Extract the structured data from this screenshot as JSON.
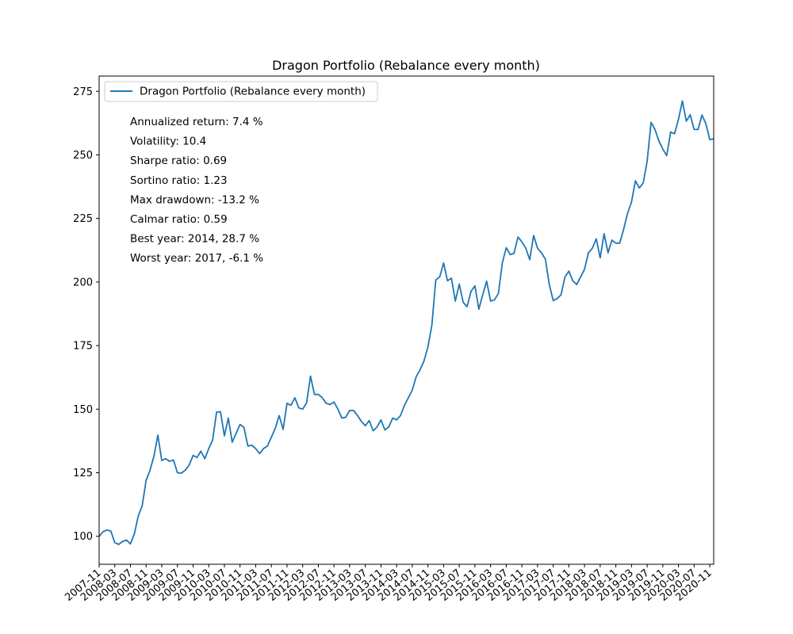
{
  "chart_data": {
    "type": "line",
    "title": "Dragon Portfolio (Rebalance every month)",
    "xlabel": "",
    "ylabel": "",
    "ylim": [
      89,
      281
    ],
    "y_ticks": [
      100,
      125,
      150,
      175,
      200,
      225,
      250,
      275
    ],
    "x_start": "2007-11",
    "x_ticks": [
      "2007-11",
      "2008-03",
      "2008-07",
      "2008-11",
      "2009-03",
      "2009-07",
      "2009-11",
      "2010-03",
      "2010-07",
      "2010-11",
      "2011-03",
      "2011-07",
      "2011-11",
      "2012-03",
      "2012-07",
      "2012-11",
      "2013-03",
      "2013-07",
      "2013-11",
      "2014-03",
      "2014-07",
      "2014-11",
      "2015-03",
      "2015-07",
      "2015-11",
      "2016-03",
      "2016-07",
      "2016-11",
      "2017-03",
      "2017-07",
      "2017-11",
      "2018-03",
      "2018-07",
      "2018-11",
      "2019-03",
      "2019-07",
      "2019-11",
      "2020-03",
      "2020-07",
      "2020-11"
    ],
    "grid": false,
    "legend_position": "top-left",
    "series": [
      {
        "name": "Dragon Portfolio (Rebalance every month)",
        "color": "#1f77b4",
        "values": [
          100.0,
          101.8,
          102.5,
          102.0,
          97.5,
          96.8,
          98.0,
          98.5,
          97.0,
          101.0,
          108.0,
          112.0,
          122.0,
          126.0,
          131.5,
          139.8,
          129.8,
          130.5,
          129.5,
          130.0,
          125.0,
          124.8,
          126.0,
          128.0,
          131.8,
          131.0,
          133.5,
          130.5,
          134.5,
          137.8,
          148.8,
          149.0,
          139.5,
          146.5,
          137.0,
          140.5,
          144.0,
          142.8,
          135.5,
          135.8,
          134.5,
          132.5,
          134.5,
          135.5,
          139.0,
          142.5,
          147.5,
          142.0,
          152.3,
          151.5,
          154.5,
          150.5,
          150.0,
          152.5,
          163.0,
          155.8,
          155.8,
          154.5,
          152.3,
          151.8,
          152.8,
          150.0,
          146.5,
          146.8,
          149.5,
          149.5,
          147.5,
          145.2,
          143.5,
          145.5,
          141.5,
          143.0,
          145.8,
          141.8,
          143.0,
          146.5,
          145.8,
          147.5,
          151.5,
          154.5,
          157.5,
          162.8,
          165.5,
          169.0,
          174.5,
          183.0,
          200.8,
          202.0,
          207.5,
          200.5,
          201.5,
          192.5,
          199.2,
          192.0,
          190.3,
          196.3,
          198.5,
          189.3,
          195.0,
          200.3,
          192.5,
          193.0,
          195.5,
          207.5,
          213.5,
          210.8,
          211.3,
          217.7,
          215.8,
          213.3,
          208.8,
          218.3,
          213.3,
          211.5,
          209.0,
          199.0,
          192.7,
          193.5,
          195.0,
          202.0,
          204.3,
          200.5,
          199.0,
          202.0,
          205.0,
          211.5,
          213.3,
          217.0,
          209.5,
          219.0,
          211.5,
          216.5,
          215.3,
          215.3,
          220.8,
          227.0,
          231.5,
          239.8,
          237.0,
          239.0,
          247.5,
          262.8,
          260.0,
          255.5,
          252.3,
          249.7,
          259.0,
          258.3,
          264.0,
          271.2,
          263.3,
          265.8,
          260.0,
          260.0,
          265.7,
          262.3,
          256.0,
          256.3
        ]
      }
    ],
    "annotations": [
      "Annualized return: 7.4 %",
      "Volatility: 10.4",
      "Sharpe ratio: 0.69",
      "Sortino ratio: 1.23",
      "Max drawdown: -13.2 %",
      "Calmar ratio: 0.59",
      "Best year: 2014, 28.7 %",
      "Worst year: 2017, -6.1 %"
    ]
  }
}
